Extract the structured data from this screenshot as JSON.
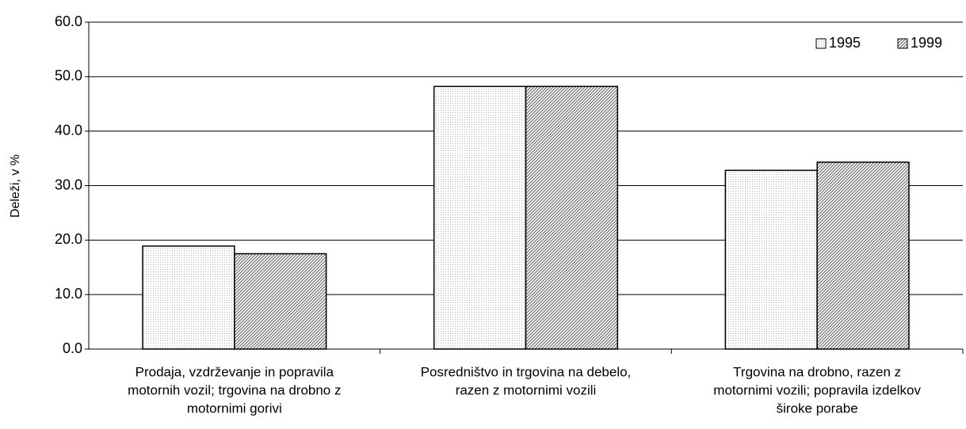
{
  "chart_data": {
    "type": "bar",
    "y_label": "Deleži, v %",
    "categories": [
      [
        "Prodaja, vzdrževanje in popravila",
        "motornih vozil; trgovina na drobno z",
        "motornimi gorivi"
      ],
      [
        "Posredništvo in trgovina na debelo,",
        "razen z motornimi vozili"
      ],
      [
        "Trgovina na drobno, razen z",
        "motornimi vozili; popravila izdelkov",
        "široke porabe"
      ]
    ],
    "series": [
      {
        "name": "1995",
        "color": "#b0b0b0",
        "values": [
          18.9,
          48.2,
          32.8
        ]
      },
      {
        "name": "1999",
        "color": "#707070",
        "values": [
          17.5,
          48.2,
          34.3
        ]
      }
    ],
    "ylim": [
      0,
      60
    ],
    "yticks": [
      {
        "value": 0,
        "label": "0.0"
      },
      {
        "value": 10,
        "label": "10.0"
      },
      {
        "value": 20,
        "label": "20.0"
      },
      {
        "value": 30,
        "label": "30.0"
      },
      {
        "value": 40,
        "label": "40.0"
      },
      {
        "value": 50,
        "label": "50.0"
      },
      {
        "value": 60,
        "label": "60.0"
      }
    ],
    "grid": true,
    "legend": "upper right"
  }
}
